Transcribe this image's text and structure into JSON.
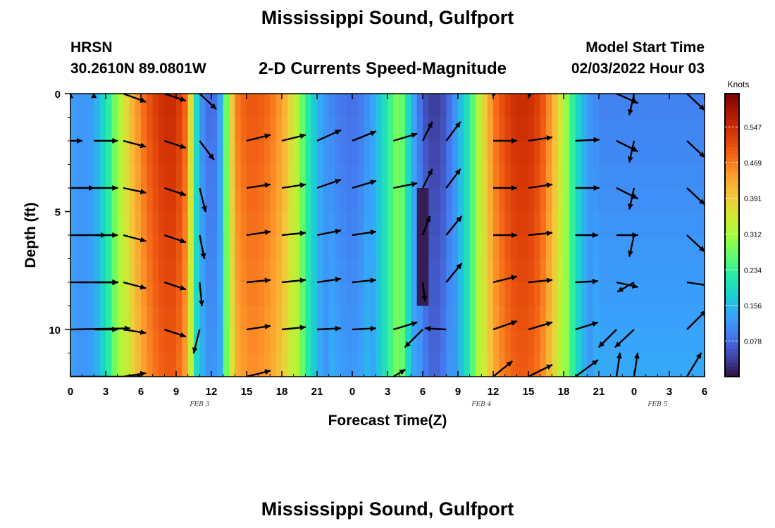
{
  "header": {
    "title": "Mississippi Sound, Gulfport",
    "station": "HRSN",
    "coordinates": "30.2610N  89.0801W",
    "model_start_label": "Model Start Time",
    "model_start_value": "02/03/2022 Hour 03",
    "footer_title": "Mississippi Sound, Gulfport"
  },
  "colors": {
    "arrow": "#000000",
    "colormap": [
      "#30123b",
      "#4145ab",
      "#4675ed",
      "#39a2fc",
      "#1bcfd4",
      "#24eca6",
      "#61fc6c",
      "#a4fc3b",
      "#d1e834",
      "#f3c63a",
      "#fe9b2d",
      "#f36315",
      "#d93806",
      "#b11901",
      "#7a0403"
    ]
  },
  "chart_data": {
    "type": "heatmap",
    "title": "2-D Currents Speed-Magnitude",
    "xlabel": "Forecast Time(Z)",
    "ylabel": "Depth (ft)",
    "x_tick_labels": [
      "0",
      "3",
      "6",
      "9",
      "12",
      "15",
      "18",
      "21",
      "0",
      "3",
      "6",
      "9",
      "12",
      "15",
      "18",
      "21",
      "0",
      "3",
      "6"
    ],
    "date_labels": [
      {
        "label": "FEB 3",
        "x_hour": 11
      },
      {
        "label": "FEB 4",
        "x_hour": 35
      },
      {
        "label": "FEB 5",
        "x_hour": 50
      }
    ],
    "xlim_hours": [
      0,
      54
    ],
    "ylim_ft": [
      0,
      12
    ],
    "y_ticks": [
      0,
      5,
      10
    ],
    "colorbar": {
      "label": "Knots",
      "ticks": [
        0.078,
        0.156,
        0.234,
        0.312,
        0.391,
        0.469,
        0.547
      ],
      "range": [
        0.0,
        0.62
      ]
    },
    "speed_profile_by_hour": [
      [
        0,
        0.13
      ],
      [
        1,
        0.12
      ],
      [
        2,
        0.13
      ],
      [
        3,
        0.2
      ],
      [
        4,
        0.3
      ],
      [
        5,
        0.4
      ],
      [
        6,
        0.47
      ],
      [
        7,
        0.52
      ],
      [
        8,
        0.55
      ],
      [
        9,
        0.55
      ],
      [
        10,
        0.47
      ],
      [
        10.7,
        0.2
      ],
      [
        11.3,
        0.1
      ],
      [
        12,
        0.07
      ],
      [
        12.6,
        0.1
      ],
      [
        13.2,
        0.26
      ],
      [
        14,
        0.46
      ],
      [
        15,
        0.5
      ],
      [
        16,
        0.5
      ],
      [
        17,
        0.48
      ],
      [
        18,
        0.44
      ],
      [
        19,
        0.36
      ],
      [
        20,
        0.24
      ],
      [
        21,
        0.15
      ],
      [
        22,
        0.11
      ],
      [
        23,
        0.09
      ],
      [
        24,
        0.08
      ],
      [
        25,
        0.1
      ],
      [
        26,
        0.15
      ],
      [
        27,
        0.22
      ],
      [
        28,
        0.3
      ],
      [
        29,
        0.16
      ],
      [
        30,
        0.06
      ],
      [
        31,
        0.03
      ],
      [
        32,
        0.06
      ],
      [
        33,
        0.14
      ],
      [
        34,
        0.22
      ],
      [
        35,
        0.36
      ],
      [
        36,
        0.47
      ],
      [
        37,
        0.52
      ],
      [
        38,
        0.55
      ],
      [
        39,
        0.55
      ],
      [
        40,
        0.52
      ],
      [
        41,
        0.44
      ],
      [
        42,
        0.33
      ],
      [
        43,
        0.2
      ],
      [
        44,
        0.13
      ],
      [
        45,
        0.1
      ],
      [
        46,
        0.1
      ],
      [
        47,
        0.1
      ],
      [
        48,
        0.1
      ],
      [
        54,
        0.1
      ]
    ],
    "current_vectors": [
      {
        "t": 0,
        "rows": [
          [
            0,
            0.1
          ],
          [
            1,
            0
          ],
          [
            2,
            0
          ],
          [
            3,
            0
          ],
          [
            4,
            0
          ],
          [
            5,
            0.1
          ],
          [
            6,
            0
          ]
        ]
      },
      {
        "t": 2,
        "rows": [
          [
            0,
            0.1
          ],
          [
            2,
            0
          ],
          [
            2,
            0
          ],
          [
            2,
            0
          ],
          [
            2,
            0
          ],
          [
            2,
            0
          ],
          [
            0,
            0
          ]
        ]
      },
      {
        "t": 4.5,
        "rows": [
          [
            1.9,
            -0.7
          ],
          [
            1.9,
            -0.5
          ],
          [
            1.9,
            -0.4
          ],
          [
            1.9,
            -0.5
          ],
          [
            1.9,
            -0.5
          ],
          [
            1.9,
            -0.3
          ],
          [
            1.9,
            0.3
          ]
        ]
      },
      {
        "t": 8,
        "rows": [
          [
            1.8,
            -0.6
          ],
          [
            1.8,
            -0.6
          ],
          [
            1.8,
            -0.6
          ],
          [
            1.8,
            -0.6
          ],
          [
            1.8,
            -0.6
          ],
          [
            1.8,
            -0.6
          ],
          [
            0,
            0
          ]
        ]
      },
      {
        "t": 11,
        "rows": [
          [
            1.4,
            -1.3
          ],
          [
            1.2,
            -1.6
          ],
          [
            0.5,
            -2
          ],
          [
            0.4,
            -2
          ],
          [
            0.2,
            -2
          ],
          [
            -0.5,
            -2
          ],
          [
            0,
            0
          ]
        ]
      },
      {
        "t": 15,
        "rows": [
          [
            0,
            0
          ],
          [
            2,
            0.5
          ],
          [
            2,
            0.3
          ],
          [
            2,
            0.3
          ],
          [
            2,
            0.2
          ],
          [
            2,
            0.3
          ],
          [
            2,
            0.5
          ]
        ]
      },
      {
        "t": 18,
        "rows": [
          [
            0,
            0
          ],
          [
            2,
            0.5
          ],
          [
            2,
            0.3
          ],
          [
            2,
            0.2
          ],
          [
            2,
            0.2
          ],
          [
            2,
            0.2
          ],
          [
            0,
            0
          ]
        ]
      },
      {
        "t": 21,
        "rows": [
          [
            0,
            0
          ],
          [
            2,
            0.9
          ],
          [
            2,
            0.7
          ],
          [
            2,
            0.4
          ],
          [
            2,
            0.3
          ],
          [
            2,
            0.1
          ],
          [
            0,
            0
          ]
        ]
      },
      {
        "t": 24,
        "rows": [
          [
            0,
            0
          ],
          [
            2,
            0.8
          ],
          [
            2,
            0.6
          ],
          [
            2,
            0.3
          ],
          [
            2,
            0.2
          ],
          [
            2,
            0.1
          ],
          [
            0,
            0
          ]
        ]
      },
      {
        "t": 27.5,
        "rows": [
          [
            0,
            0
          ],
          [
            2,
            0.6
          ],
          [
            2,
            0.4
          ],
          [
            0,
            0
          ],
          [
            0,
            0
          ],
          [
            2,
            0.6
          ],
          [
            1,
            0.6
          ]
        ]
      },
      {
        "t": 30,
        "rows": [
          [
            0,
            0
          ],
          [
            0.8,
            1.6
          ],
          [
            0.8,
            1.6
          ],
          [
            0.6,
            1.6
          ],
          [
            0.2,
            -1.6
          ],
          [
            -1.5,
            -1.5
          ],
          [
            -1.5,
            -1.3
          ]
        ]
      },
      {
        "t": 32,
        "rows": [
          [
            0.5,
            1.6
          ],
          [
            1.2,
            1.6
          ],
          [
            1.2,
            1.6
          ],
          [
            1.3,
            1.6
          ],
          [
            1.3,
            1.6
          ],
          [
            -1.8,
            0.1
          ],
          [
            0,
            0
          ]
        ]
      },
      {
        "t": 36,
        "rows": [
          [
            -0.2,
            0.2
          ],
          [
            2,
            0
          ],
          [
            2,
            0
          ],
          [
            2,
            0
          ],
          [
            2,
            0.5
          ],
          [
            2,
            0.7
          ],
          [
            1.6,
            1.3
          ]
        ]
      },
      {
        "t": 39,
        "rows": [
          [
            -0.2,
            0.1
          ],
          [
            2,
            0.3
          ],
          [
            2,
            0.3
          ],
          [
            2,
            0.2
          ],
          [
            2,
            0.2
          ],
          [
            2,
            0.6
          ],
          [
            2,
            1
          ]
        ]
      },
      {
        "t": 43,
        "rows": [
          [
            0,
            0
          ],
          [
            2,
            0.1
          ],
          [
            2,
            0
          ],
          [
            1.9,
            0
          ],
          [
            1.9,
            0.1
          ],
          [
            1.9,
            0.6
          ],
          [
            1.9,
            1.4
          ]
        ]
      },
      {
        "t": 46.5,
        "rows": [
          [
            1.8,
            -0.8
          ],
          [
            1.8,
            -0.9
          ],
          [
            1.8,
            -0.9
          ],
          [
            1.8,
            0
          ],
          [
            1.8,
            -0.4
          ],
          [
            -1.5,
            -1.5
          ],
          [
            0.3,
            2
          ]
        ]
      },
      {
        "t": 48,
        "rows": [
          [
            -0.4,
            -1.8
          ],
          [
            -0.4,
            -1.8
          ],
          [
            -0.4,
            -1.8
          ],
          [
            -0.4,
            -1.8
          ],
          [
            -1.4,
            -0.8
          ],
          [
            -1.6,
            -1.5
          ],
          [
            0.3,
            2
          ]
        ]
      },
      {
        "t": 52.5,
        "rows": [
          [
            1.5,
            -1.4
          ],
          [
            1.5,
            -1.4
          ],
          [
            1.5,
            -1.4
          ],
          [
            1.5,
            -1.4
          ],
          [
            2,
            -0.3
          ],
          [
            1.6,
            1.6
          ],
          [
            1.2,
            2
          ]
        ]
      }
    ]
  }
}
